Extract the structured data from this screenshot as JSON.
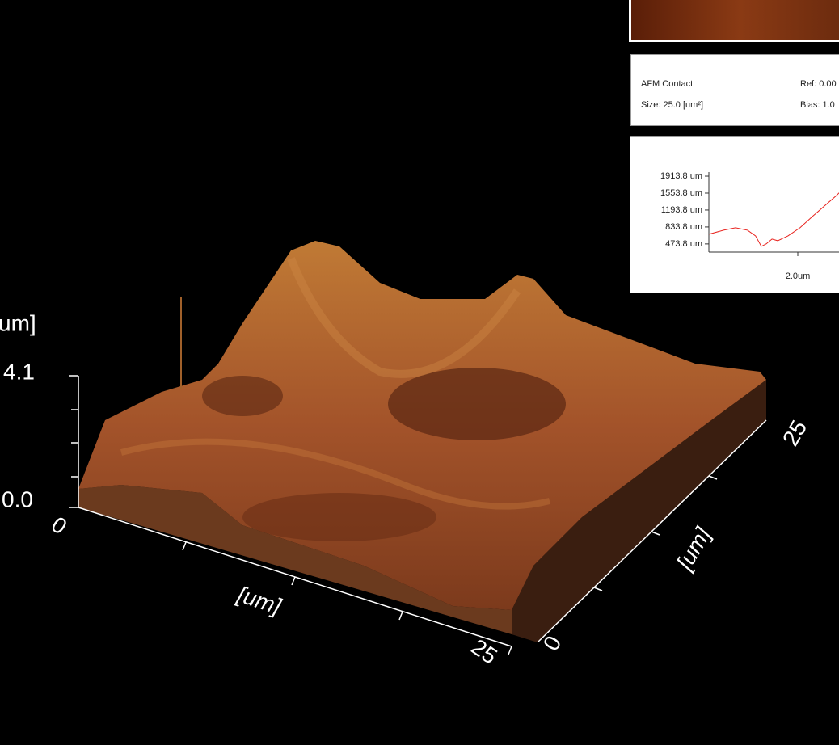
{
  "view3d": {
    "z_axis_label": "um]",
    "z_max": "4.1",
    "z_min": "0.0",
    "x_min": "0",
    "x_max": "25",
    "x_label": "[um]",
    "y_min": "0",
    "y_max": "25",
    "y_label": "[um]"
  },
  "info": {
    "mode": "AFM Contact",
    "ref": "Ref: 0.00",
    "size": "Size: 25.0 [um²]",
    "bias": "Bias: 1.0"
  },
  "chart_data": {
    "type": "line",
    "x": [
      0,
      0.33,
      0.6,
      0.87,
      1.05,
      1.18,
      1.29,
      1.42,
      1.55,
      1.78,
      2.05,
      2.33,
      2.6,
      2.87,
      3.05
    ],
    "series": [
      {
        "color": "#e8231e",
        "values": [
          680,
          765,
          817,
          765,
          645,
          422,
          474,
          577,
          542,
          645,
          817,
          1057,
          1280,
          1502,
          1674
        ]
      }
    ],
    "xlim": [
      0,
      3.0
    ],
    "ylim": [
      300,
      2000
    ],
    "xticks": [
      {
        "value": 2.0,
        "label": "2.0um"
      }
    ],
    "yticks": [
      {
        "value": 473.8,
        "label": "473.8 um"
      },
      {
        "value": 833.8,
        "label": "833.8 um"
      },
      {
        "value": 1193.8,
        "label": "1193.8 um"
      },
      {
        "value": 1553.8,
        "label": "1553.8 um"
      },
      {
        "value": 1913.8,
        "label": "1913.8 um"
      }
    ]
  }
}
